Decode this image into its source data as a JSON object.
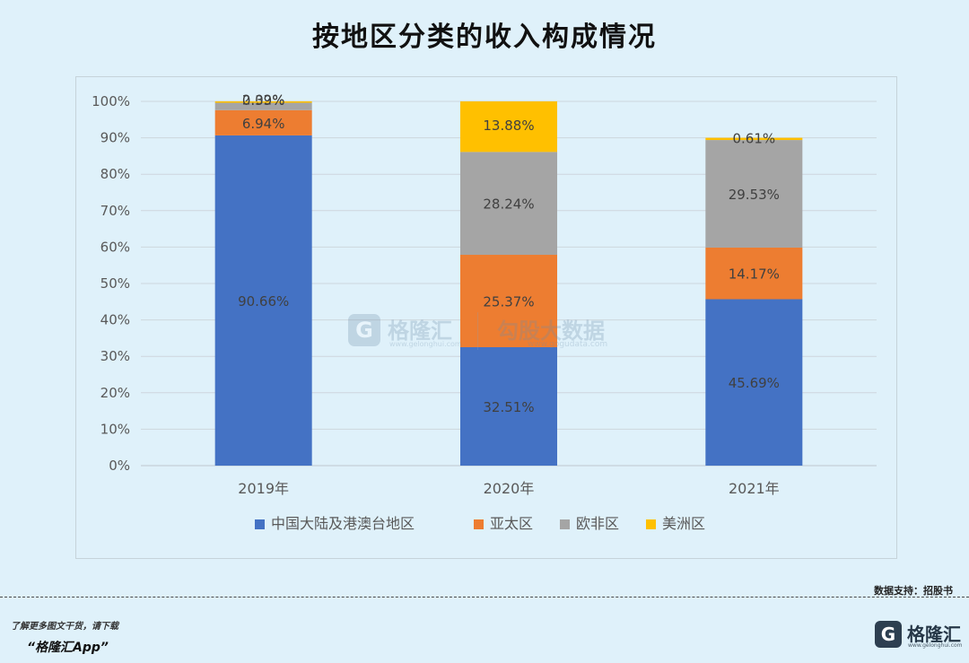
{
  "title": "按地区分类的收入构成情况",
  "chart_data": {
    "type": "bar",
    "stacked": true,
    "title": "按地区分类的收入构成情况",
    "categories": [
      "2019年",
      "2020年",
      "2021年"
    ],
    "yticks": [
      "0%",
      "10%",
      "20%",
      "30%",
      "40%",
      "50%",
      "60%",
      "70%",
      "80%",
      "90%",
      "100%"
    ],
    "ylim": [
      0,
      100
    ],
    "grid": true,
    "legend_position": "bottom",
    "series": [
      {
        "name": "中国大陆及港澳台地区",
        "color": "#4472c4",
        "values": [
          90.66,
          32.51,
          45.69
        ],
        "labels": [
          "90.66%",
          "32.51%",
          "45.69%"
        ]
      },
      {
        "name": "亚太区",
        "color": "#ed7d31",
        "values": [
          6.94,
          25.37,
          14.17
        ],
        "labels": [
          "6.94%",
          "25.37%",
          "14.17%"
        ]
      },
      {
        "name": "欧非区",
        "color": "#a5a5a5",
        "values": [
          2.02,
          28.24,
          29.53
        ],
        "labels": [
          "2.02%",
          "28.24%",
          "29.53%"
        ]
      },
      {
        "name": "美洲区",
        "color": "#ffc000",
        "values": [
          0.39,
          13.88,
          0.61
        ],
        "labels": [
          "0.39%",
          "13.88%",
          "0.61%"
        ]
      }
    ]
  },
  "watermark": {
    "logo": "G",
    "brand_cn": "格隆汇",
    "brand_en": "www.gelonghui.com",
    "partner_cn": "勾股大数据",
    "partner_en": "www.gogudata.com"
  },
  "footer": {
    "source": "数据支持：招股书",
    "cta_line_1": "了解更多图文干货，请下载",
    "cta_line_2": "“格隆汇App”",
    "brand_logo": "G",
    "brand_name": "格隆汇",
    "brand_site": "www.gelonghui.com"
  }
}
